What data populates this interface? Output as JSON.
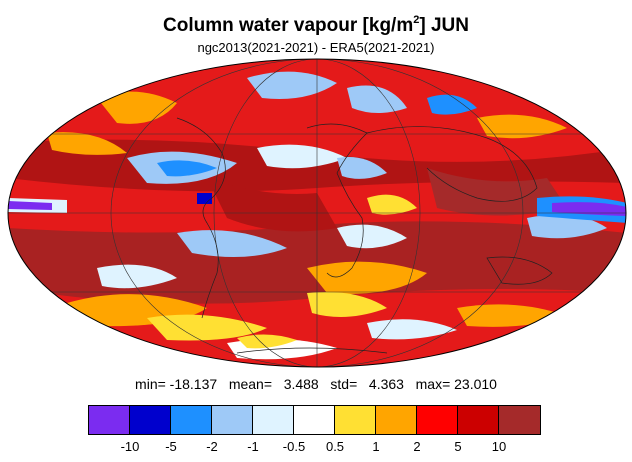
{
  "figure": {
    "title_main": "Column water vapour [kg/m",
    "title_sup": "2",
    "title_end": "] JUN",
    "subtitle": "ngc2013(2021-2021) - ERA5(2021-2021)"
  },
  "stats": {
    "text": "min= -18.137   mean=   3.488   std=   4.363   max= 23.010"
  },
  "colorbar": {
    "colors": [
      "#7b2cf0",
      "#0000cd",
      "#1e90ff",
      "#9ec9f7",
      "#dff3ff",
      "#ffffff",
      "#ffe033",
      "#ffa500",
      "#ff0000",
      "#cc0000",
      "#a52a2a"
    ],
    "labels": [
      "-10",
      "-5",
      "-2",
      "-1",
      "-0.5",
      "0.5",
      "1",
      "2",
      "5",
      "10"
    ]
  }
}
